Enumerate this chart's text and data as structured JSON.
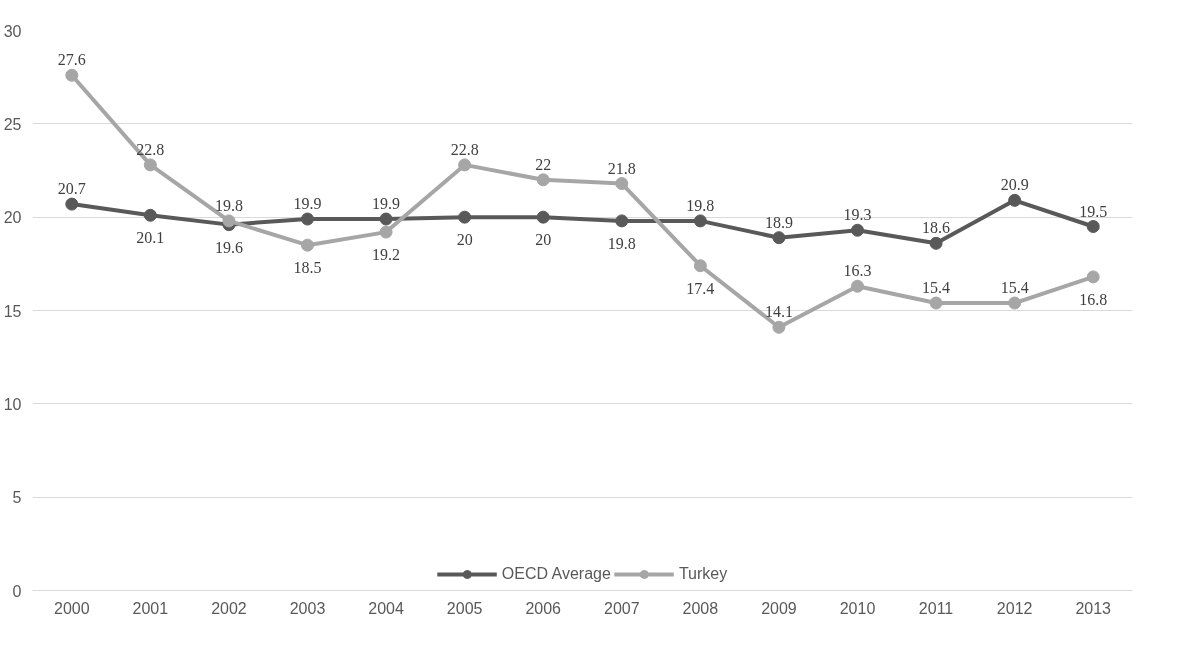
{
  "chart_data": {
    "type": "line",
    "categories": [
      "2000",
      "2001",
      "2002",
      "2003",
      "2004",
      "2005",
      "2006",
      "2007",
      "2008",
      "2009",
      "2010",
      "2011",
      "2012",
      "2013"
    ],
    "series": [
      {
        "name": "OECD Average",
        "color": "#595959",
        "values": [
          20.7,
          20.1,
          19.6,
          19.9,
          19.9,
          20,
          20,
          19.8,
          19.8,
          18.9,
          19.3,
          18.6,
          20.9,
          19.5
        ]
      },
      {
        "name": "Turkey",
        "color": "#a6a6a6",
        "values": [
          27.6,
          22.8,
          19.8,
          18.5,
          19.2,
          22.8,
          22,
          21.8,
          17.4,
          14.1,
          16.3,
          15.4,
          15.4,
          16.8
        ]
      }
    ],
    "ylim": [
      0,
      30
    ],
    "yticks": [
      0,
      5,
      10,
      15,
      20,
      25,
      30
    ],
    "grid": "y",
    "legend": "bottom",
    "marker": "circle",
    "line_style": "solid",
    "data_labels": true
  }
}
